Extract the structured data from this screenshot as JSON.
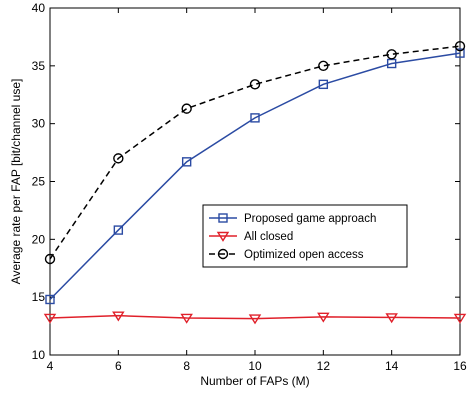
{
  "chart_data": {
    "type": "line",
    "xlabel": "Number of FAPs (M)",
    "ylabel": "Average rate per FAP [bit/channel use]",
    "xlim": [
      4,
      16
    ],
    "ylim": [
      10,
      40
    ],
    "xticks": [
      4,
      6,
      8,
      10,
      12,
      14,
      16
    ],
    "yticks": [
      10,
      15,
      20,
      25,
      30,
      35,
      40
    ],
    "grid": false,
    "legend_position": "center-right",
    "x": [
      4,
      6,
      8,
      10,
      12,
      14,
      16
    ],
    "series": [
      {
        "name": "Proposed game approach",
        "values": [
          14.8,
          20.8,
          26.7,
          30.5,
          33.4,
          35.2,
          36.1
        ],
        "color": "#2b4ba3",
        "marker": "square",
        "linestyle": "solid"
      },
      {
        "name": "All closed",
        "values": [
          13.2,
          13.4,
          13.2,
          13.15,
          13.3,
          13.25,
          13.2
        ],
        "color": "#e0202a",
        "marker": "triangle-down",
        "linestyle": "solid"
      },
      {
        "name": "Optimized open access",
        "values": [
          18.3,
          27.0,
          31.3,
          33.4,
          35.0,
          36.0,
          36.7
        ],
        "color": "#000000",
        "marker": "circle",
        "linestyle": "dashed"
      }
    ]
  }
}
